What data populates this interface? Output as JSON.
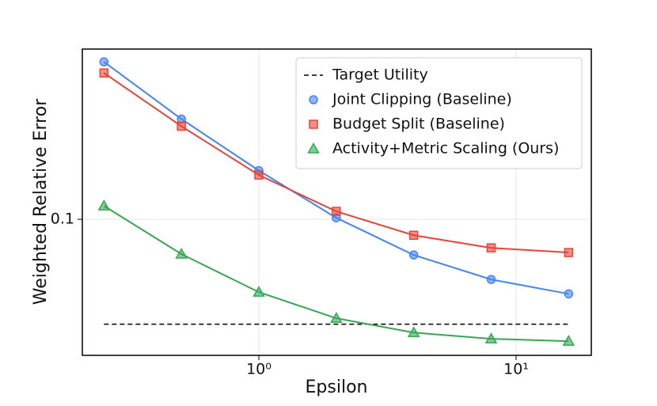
{
  "chart_data": {
    "type": "line",
    "xlabel": "Epsilon",
    "ylabel": "Weighted Relative Error",
    "x": [
      0.25,
      0.5,
      1,
      2,
      4,
      8,
      16
    ],
    "series": [
      {
        "name": "Target Utility",
        "color": "#000000",
        "style": "dashed",
        "x": [
          0.25,
          16
        ],
        "values": [
          0.05,
          0.05
        ]
      },
      {
        "name": "Joint Clipping (Baseline)",
        "color": "#4285f4",
        "marker": "circle",
        "values": [
          0.283,
          0.194,
          0.138,
          0.101,
          0.079,
          0.0672,
          0.0611
        ]
      },
      {
        "name": "Budget Split (Baseline)",
        "color": "#ea4335",
        "marker": "square",
        "values": [
          0.263,
          0.185,
          0.134,
          0.1054,
          0.09,
          0.0828,
          0.0803
        ]
      },
      {
        "name": "Activity+Metric Scaling (Ours)",
        "color": "#34a853",
        "marker": "triangle",
        "values": [
          0.1093,
          0.0795,
          0.0618,
          0.052,
          0.0473,
          0.0454,
          0.0447
        ]
      }
    ],
    "xscale": "log",
    "yscale": "log",
    "xlim": [
      0.206,
      19.6
    ],
    "ylim": [
      0.0407,
      0.308
    ],
    "xticks": [
      {
        "value": 1,
        "label": "10⁰"
      },
      {
        "value": 10,
        "label": "10¹"
      }
    ],
    "yticks": [
      0.1
    ],
    "grid": true,
    "legend": "upper right"
  }
}
